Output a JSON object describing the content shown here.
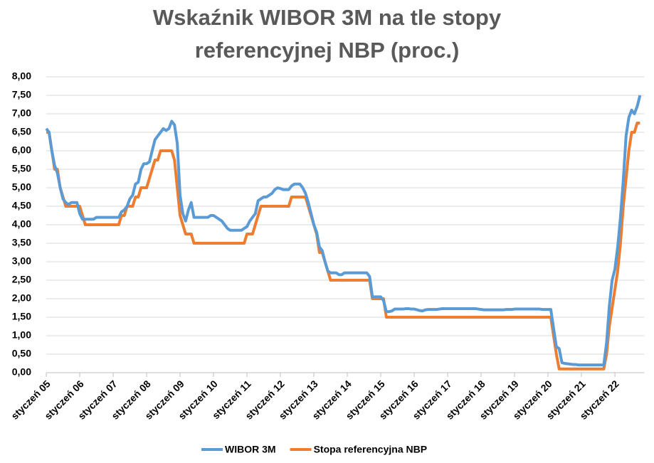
{
  "chart_data": {
    "type": "line",
    "title": "Wskaźnik WIBOR 3M na tle stopy referencyjnej NBP (proc.)",
    "categories": [
      "styczeń 05",
      null,
      null,
      null,
      null,
      null,
      null,
      null,
      null,
      null,
      null,
      null,
      "styczeń 06",
      null,
      null,
      null,
      null,
      null,
      null,
      null,
      null,
      null,
      null,
      null,
      "styczeń 07",
      null,
      null,
      null,
      null,
      null,
      null,
      null,
      null,
      null,
      null,
      null,
      "styczeń 08",
      null,
      null,
      null,
      null,
      null,
      null,
      null,
      null,
      null,
      null,
      null,
      "styczeń 09",
      null,
      null,
      null,
      null,
      null,
      null,
      null,
      null,
      null,
      null,
      null,
      "styczeń 10",
      null,
      null,
      null,
      null,
      null,
      null,
      null,
      null,
      null,
      null,
      null,
      "styczeń 11",
      null,
      null,
      null,
      null,
      null,
      null,
      null,
      null,
      null,
      null,
      null,
      "styczeń 12",
      null,
      null,
      null,
      null,
      null,
      null,
      null,
      null,
      null,
      null,
      null,
      "styczeń 13",
      null,
      null,
      null,
      null,
      null,
      null,
      null,
      null,
      null,
      null,
      null,
      "styczeń 14",
      null,
      null,
      null,
      null,
      null,
      null,
      null,
      null,
      null,
      null,
      null,
      "styczeń 15",
      null,
      null,
      null,
      null,
      null,
      null,
      null,
      null,
      null,
      null,
      null,
      "styczeń 16",
      null,
      null,
      null,
      null,
      null,
      null,
      null,
      null,
      null,
      null,
      null,
      "styczeń 17",
      null,
      null,
      null,
      null,
      null,
      null,
      null,
      null,
      null,
      null,
      null,
      "styczeń 18",
      null,
      null,
      null,
      null,
      null,
      null,
      null,
      null,
      null,
      null,
      null,
      "styczeń 19",
      null,
      null,
      null,
      null,
      null,
      null,
      null,
      null,
      null,
      null,
      null,
      "styczeń 20",
      null,
      null,
      null,
      null,
      null,
      null,
      null,
      null,
      null,
      null,
      null,
      "styczeń 21",
      null,
      null,
      null,
      null,
      null,
      null,
      null,
      null,
      null,
      null,
      null,
      "styczeń 22",
      null,
      null,
      null,
      null,
      null,
      null,
      null,
      null,
      null
    ],
    "series": [
      {
        "name": "WIBOR 3M",
        "color": "#5b9bd5",
        "values": [
          6.6,
          6.5,
          6.0,
          5.6,
          5.4,
          5.0,
          4.7,
          4.6,
          4.55,
          4.6,
          4.6,
          4.6,
          4.3,
          4.15,
          4.15,
          4.15,
          4.15,
          4.15,
          4.2,
          4.2,
          4.2,
          4.2,
          4.2,
          4.2,
          4.2,
          4.2,
          4.2,
          4.35,
          4.4,
          4.5,
          4.7,
          4.8,
          5.1,
          5.15,
          5.5,
          5.65,
          5.65,
          5.7,
          6.0,
          6.3,
          6.4,
          6.5,
          6.6,
          6.55,
          6.6,
          6.8,
          6.7,
          6.2,
          4.8,
          4.3,
          4.1,
          4.4,
          4.6,
          4.2,
          4.2,
          4.2,
          4.2,
          4.2,
          4.2,
          4.25,
          4.25,
          4.2,
          4.15,
          4.1,
          4.0,
          3.9,
          3.85,
          3.85,
          3.85,
          3.85,
          3.85,
          3.9,
          3.95,
          4.1,
          4.2,
          4.3,
          4.65,
          4.7,
          4.75,
          4.75,
          4.8,
          4.85,
          4.95,
          5.0,
          4.98,
          4.95,
          4.95,
          4.95,
          5.05,
          5.1,
          5.1,
          5.1,
          5.0,
          4.85,
          4.6,
          4.3,
          4.0,
          3.8,
          3.4,
          3.3,
          3.0,
          2.75,
          2.7,
          2.7,
          2.7,
          2.65,
          2.65,
          2.7,
          2.7,
          2.7,
          2.7,
          2.7,
          2.7,
          2.7,
          2.7,
          2.7,
          2.6,
          2.05,
          2.05,
          2.05,
          2.05,
          1.95,
          1.65,
          1.65,
          1.67,
          1.72,
          1.72,
          1.72,
          1.72,
          1.73,
          1.73,
          1.72,
          1.72,
          1.7,
          1.68,
          1.67,
          1.7,
          1.71,
          1.71,
          1.71,
          1.71,
          1.72,
          1.73,
          1.73,
          1.73,
          1.73,
          1.73,
          1.73,
          1.73,
          1.73,
          1.73,
          1.73,
          1.73,
          1.73,
          1.73,
          1.72,
          1.71,
          1.7,
          1.7,
          1.7,
          1.7,
          1.7,
          1.7,
          1.7,
          1.7,
          1.71,
          1.71,
          1.71,
          1.72,
          1.72,
          1.72,
          1.72,
          1.72,
          1.72,
          1.72,
          1.72,
          1.72,
          1.72,
          1.71,
          1.71,
          1.71,
          1.71,
          1.2,
          0.7,
          0.65,
          0.27,
          0.25,
          0.24,
          0.23,
          0.22,
          0.22,
          0.21,
          0.21,
          0.21,
          0.21,
          0.21,
          0.21,
          0.21,
          0.21,
          0.21,
          0.21,
          0.8,
          1.8,
          2.5,
          2.8,
          3.4,
          4.2,
          5.2,
          6.4,
          6.9,
          7.1,
          7.0,
          7.2,
          7.5
        ]
      },
      {
        "name": "Stopa referencyjna NBP",
        "color": "#ed7d31",
        "values": [
          6.5,
          6.5,
          6,
          5.5,
          5.5,
          5,
          4.75,
          4.5,
          4.5,
          4.5,
          4.5,
          4.5,
          4.5,
          4.25,
          4,
          4,
          4,
          4,
          4,
          4,
          4,
          4,
          4,
          4,
          4,
          4,
          4,
          4.25,
          4.25,
          4.5,
          4.5,
          4.5,
          4.75,
          4.75,
          5,
          5,
          5,
          5.25,
          5.5,
          5.75,
          5.75,
          6,
          6,
          6,
          6,
          6,
          5.75,
          5,
          4.25,
          4,
          3.75,
          3.75,
          3.75,
          3.5,
          3.5,
          3.5,
          3.5,
          3.5,
          3.5,
          3.5,
          3.5,
          3.5,
          3.5,
          3.5,
          3.5,
          3.5,
          3.5,
          3.5,
          3.5,
          3.5,
          3.5,
          3.5,
          3.75,
          3.75,
          3.75,
          4,
          4.25,
          4.5,
          4.5,
          4.5,
          4.5,
          4.5,
          4.5,
          4.5,
          4.5,
          4.5,
          4.5,
          4.5,
          4.75,
          4.75,
          4.75,
          4.75,
          4.75,
          4.75,
          4.5,
          4.25,
          4,
          3.75,
          3.25,
          3.25,
          3,
          2.75,
          2.5,
          2.5,
          2.5,
          2.5,
          2.5,
          2.5,
          2.5,
          2.5,
          2.5,
          2.5,
          2.5,
          2.5,
          2.5,
          2.5,
          2.5,
          2,
          2,
          2,
          2,
          2,
          1.5,
          1.5,
          1.5,
          1.5,
          1.5,
          1.5,
          1.5,
          1.5,
          1.5,
          1.5,
          1.5,
          1.5,
          1.5,
          1.5,
          1.5,
          1.5,
          1.5,
          1.5,
          1.5,
          1.5,
          1.5,
          1.5,
          1.5,
          1.5,
          1.5,
          1.5,
          1.5,
          1.5,
          1.5,
          1.5,
          1.5,
          1.5,
          1.5,
          1.5,
          1.5,
          1.5,
          1.5,
          1.5,
          1.5,
          1.5,
          1.5,
          1.5,
          1.5,
          1.5,
          1.5,
          1.5,
          1.5,
          1.5,
          1.5,
          1.5,
          1.5,
          1.5,
          1.5,
          1.5,
          1.5,
          1.5,
          1.5,
          1.5,
          1.5,
          1.5,
          1,
          0.5,
          0.1,
          0.1,
          0.1,
          0.1,
          0.1,
          0.1,
          0.1,
          0.1,
          0.1,
          0.1,
          0.1,
          0.1,
          0.1,
          0.1,
          0.1,
          0.1,
          0.1,
          0.5,
          1.25,
          1.75,
          2.25,
          2.75,
          3.5,
          4.5,
          5.25,
          6,
          6.5,
          6.5,
          6.75,
          6.75
        ]
      }
    ],
    "ylim": [
      0,
      8
    ],
    "yticks": [
      {
        "value": 0,
        "label": "0,00"
      },
      {
        "value": 0.5,
        "label": "0,50"
      },
      {
        "value": 1,
        "label": "1,00"
      },
      {
        "value": 1.5,
        "label": "1,50"
      },
      {
        "value": 2,
        "label": "2,00"
      },
      {
        "value": 2.5,
        "label": "2,50"
      },
      {
        "value": 3,
        "label": "3,00"
      },
      {
        "value": 3.5,
        "label": "3,50"
      },
      {
        "value": 4,
        "label": "4,00"
      },
      {
        "value": 4.5,
        "label": "4,50"
      },
      {
        "value": 5,
        "label": "5,00"
      },
      {
        "value": 5.5,
        "label": "5,50"
      },
      {
        "value": 6,
        "label": "6,00"
      },
      {
        "value": 6.5,
        "label": "6,50"
      },
      {
        "value": 7,
        "label": "7,00"
      },
      {
        "value": 7.5,
        "label": "7,50"
      },
      {
        "value": 8,
        "label": "8,00"
      }
    ],
    "grid": true,
    "legend": "bottom"
  }
}
